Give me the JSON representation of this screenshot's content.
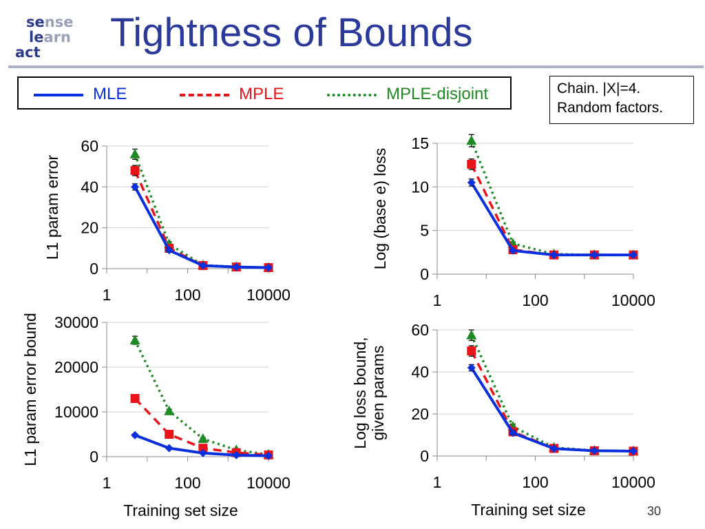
{
  "slide": {
    "title": "Tightness of Bounds",
    "page_number": "30",
    "logo": {
      "line1": [
        "se",
        "nse"
      ],
      "line2": [
        "le",
        "arn"
      ],
      "line3": [
        "act",
        ""
      ]
    }
  },
  "legend": [
    {
      "label": "MLE",
      "color": "#0a2fdc",
      "dash": "solid"
    },
    {
      "label": "MPLE",
      "color": "#e8141a",
      "dash": "dashed"
    },
    {
      "label": "MPLE-disjoint",
      "color": "#1e8a23",
      "dash": "dotted"
    }
  ],
  "note": [
    "Chain. |X|=4.",
    "Random factors."
  ],
  "colors": {
    "MLE": "#0a2fdc",
    "MPLE": "#e8141a",
    "MPLE-disjoint": "#1e8a23",
    "title": "#2b3a9a"
  },
  "chart_data": [
    {
      "type": "line",
      "xscale": "log",
      "xlim": [
        1,
        10000
      ],
      "xticks": [
        "1",
        "100",
        "10000"
      ],
      "ylim": [
        0,
        60
      ],
      "yticks": [
        "0",
        "20",
        "40",
        "60"
      ],
      "ylabel": [
        "L1 param error"
      ],
      "xlabel": "",
      "grid": true,
      "x": [
        5,
        35,
        240,
        1600,
        10000
      ],
      "series": [
        {
          "name": "MLE",
          "values": [
            40,
            9,
            1.5,
            0.8,
            0.5
          ],
          "err": [
            1.5,
            1,
            0.5,
            0.3,
            0.2
          ]
        },
        {
          "name": "MPLE",
          "values": [
            48,
            10,
            1.5,
            0.8,
            0.5
          ],
          "err": [
            2.5,
            1,
            0.5,
            0.3,
            0.2
          ]
        },
        {
          "name": "MPLE-disjoint",
          "values": [
            56,
            12,
            1.7,
            0.9,
            0.5
          ],
          "err": [
            2.5,
            1.2,
            0.5,
            0.3,
            0.2
          ]
        }
      ]
    },
    {
      "type": "line",
      "xscale": "log",
      "xlim": [
        1,
        10000
      ],
      "xticks": [
        "1",
        "100",
        "10000"
      ],
      "ylim": [
        0,
        15
      ],
      "yticks": [
        "0",
        "5",
        "10",
        "15"
      ],
      "ylabel": [
        "Log (base e) loss"
      ],
      "xlabel": "",
      "grid": true,
      "x": [
        5,
        35,
        240,
        1600,
        10000
      ],
      "series": [
        {
          "name": "MLE",
          "values": [
            10.5,
            2.7,
            2.2,
            2.2,
            2.2
          ],
          "err": [
            0.4,
            0.15,
            0.1,
            0.1,
            0.1
          ]
        },
        {
          "name": "MPLE",
          "values": [
            12.6,
            2.8,
            2.2,
            2.2,
            2.2
          ],
          "err": [
            0.6,
            0.15,
            0.1,
            0.1,
            0.1
          ]
        },
        {
          "name": "MPLE-disjoint",
          "values": [
            15.3,
            3.5,
            2.3,
            2.2,
            2.2
          ],
          "err": [
            0.7,
            0.2,
            0.1,
            0.1,
            0.1
          ]
        }
      ]
    },
    {
      "type": "line",
      "xscale": "log",
      "xlim": [
        1,
        10000
      ],
      "xticks": [
        "1",
        "100",
        "10000"
      ],
      "ylim": [
        0,
        30000
      ],
      "yticks": [
        "0",
        "10000",
        "20000",
        "30000"
      ],
      "ylabel": [
        "L1 param error bound"
      ],
      "xlabel": "Training set size",
      "grid": true,
      "x": [
        5,
        35,
        240,
        1600,
        10000
      ],
      "series": [
        {
          "name": "MLE",
          "values": [
            4800,
            1900,
            800,
            350,
            200
          ],
          "err": [
            300,
            150,
            80,
            50,
            30
          ]
        },
        {
          "name": "MPLE",
          "values": [
            13000,
            5000,
            1900,
            900,
            400
          ],
          "err": [
            500,
            300,
            150,
            80,
            40
          ]
        },
        {
          "name": "MPLE-disjoint",
          "values": [
            26000,
            10200,
            4000,
            1500,
            500
          ],
          "err": [
            900,
            400,
            200,
            100,
            50
          ]
        }
      ]
    },
    {
      "type": "line",
      "xscale": "log",
      "xlim": [
        1,
        10000
      ],
      "xticks": [
        "1",
        "100",
        "10000"
      ],
      "ylim": [
        0,
        60
      ],
      "yticks": [
        "0",
        "20",
        "40",
        "60"
      ],
      "ylabel": [
        "Log loss bound,",
        "given params"
      ],
      "xlabel": "Training set size",
      "grid": true,
      "x": [
        5,
        35,
        240,
        1600,
        10000
      ],
      "series": [
        {
          "name": "MLE",
          "values": [
            42,
            11,
            3.5,
            2.5,
            2.3
          ],
          "err": [
            1.5,
            1,
            0.4,
            0.3,
            0.2
          ]
        },
        {
          "name": "MPLE",
          "values": [
            50,
            11.5,
            3.6,
            2.5,
            2.3
          ],
          "err": [
            2.5,
            1,
            0.4,
            0.3,
            0.2
          ]
        },
        {
          "name": "MPLE-disjoint",
          "values": [
            57.5,
            14,
            4,
            2.6,
            2.4
          ],
          "err": [
            2.5,
            1.2,
            0.5,
            0.3,
            0.2
          ]
        }
      ]
    }
  ]
}
